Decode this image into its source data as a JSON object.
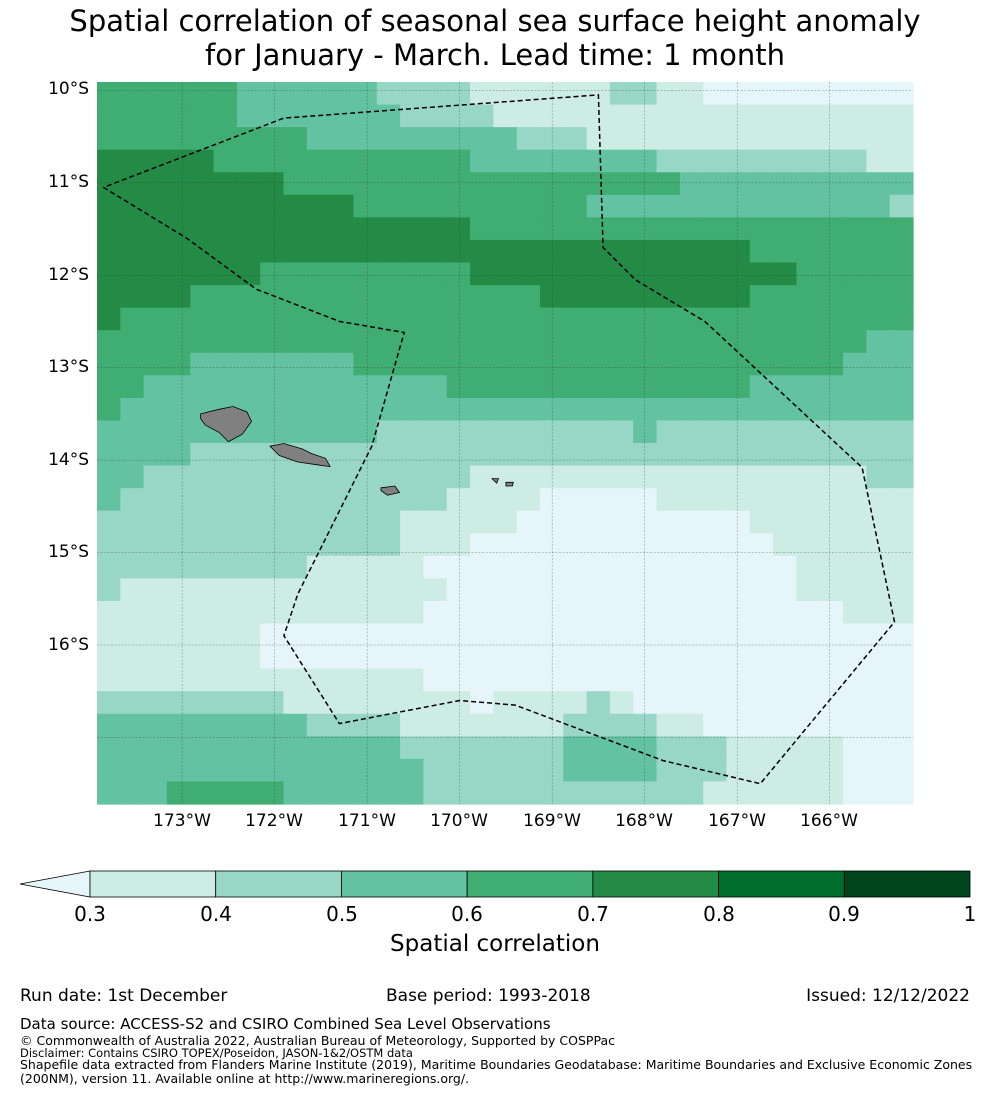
{
  "title_line1": "Spatial correlation of seasonal sea surface height anomaly",
  "title_line2": "for January - March. Lead time: 1 month",
  "lat_labels": [
    "10°S",
    "11°S",
    "12°S",
    "13°S",
    "14°S",
    "15°S",
    "16°S"
  ],
  "lon_labels": [
    "173°W",
    "172°W",
    "171°W",
    "170°W",
    "169°W",
    "168°W",
    "167°W",
    "166°W"
  ],
  "colorbar": {
    "label": "Spatial correlation",
    "ticks": [
      "0.3",
      "0.4",
      "0.5",
      "0.6",
      "0.7",
      "0.8",
      "0.9",
      "1"
    ],
    "colors": [
      "#cdece4",
      "#98d7c6",
      "#62c2a2",
      "#40ad72",
      "#238b45",
      "#006d2c",
      "#00441b"
    ],
    "under_color": "#e5f5f9"
  },
  "footer": {
    "run_date": "Run date: 1st December",
    "base_period": "Base period: 1993-2018",
    "issued": "Issued: 12/12/2022",
    "data_source": "Data source: ACCESS-S2 and CSIRO Combined Sea Level Observations",
    "copyright": "© Commonwealth of Australia 2022, Australian Bureau of Meteorology, Supported by COSPPac",
    "disclaimer": "Disclaimer: Contains CSIRO TOPEX/Poseidon, JASON-1&2/OSTM data",
    "shapefile1": "Shapefile data extracted from Flanders Marine Institute (2019), Maritime Boundaries Geodatabase: Maritime Boundaries and Exclusive Economic Zones",
    "shapefile2": "(200NM), version 11. Available online at http://www.marineregions.org/."
  },
  "map_data": {
    "legend_levels": [
      0.2,
      0.35,
      0.45,
      0.55,
      0.65,
      0.75
    ],
    "grid_rows": [
      [
        4,
        4,
        4,
        4,
        4,
        4,
        3,
        3,
        3,
        3,
        3,
        3,
        2,
        2,
        2,
        2,
        1,
        1,
        1,
        1,
        1,
        1,
        2,
        2,
        1,
        1,
        0,
        0,
        0,
        0,
        0,
        0,
        0,
        0,
        0
      ],
      [
        4,
        4,
        4,
        4,
        4,
        4,
        3,
        3,
        3,
        3,
        3,
        3,
        3,
        2,
        2,
        2,
        2,
        1,
        1,
        1,
        1,
        1,
        1,
        1,
        1,
        1,
        1,
        1,
        1,
        1,
        1,
        1,
        1,
        1,
        1
      ],
      [
        4,
        4,
        4,
        4,
        4,
        4,
        4,
        4,
        4,
        3,
        3,
        3,
        3,
        3,
        3,
        3,
        3,
        3,
        2,
        2,
        2,
        1,
        1,
        1,
        1,
        1,
        1,
        1,
        1,
        1,
        1,
        1,
        1,
        1,
        1
      ],
      [
        5,
        5,
        5,
        5,
        5,
        4,
        4,
        4,
        4,
        4,
        4,
        4,
        4,
        4,
        4,
        4,
        3,
        3,
        3,
        3,
        3,
        3,
        3,
        3,
        2,
        2,
        2,
        2,
        2,
        2,
        2,
        2,
        2,
        1,
        1
      ],
      [
        5,
        5,
        5,
        5,
        5,
        5,
        5,
        5,
        4,
        4,
        4,
        4,
        4,
        4,
        4,
        4,
        4,
        4,
        4,
        4,
        4,
        4,
        4,
        4,
        4,
        3,
        3,
        3,
        3,
        3,
        3,
        3,
        3,
        3,
        3
      ],
      [
        5,
        5,
        5,
        5,
        5,
        5,
        5,
        5,
        5,
        5,
        5,
        4,
        4,
        4,
        4,
        4,
        4,
        4,
        4,
        4,
        4,
        3,
        3,
        3,
        3,
        3,
        3,
        3,
        3,
        3,
        3,
        3,
        3,
        3,
        2
      ],
      [
        5,
        5,
        5,
        5,
        5,
        5,
        5,
        5,
        5,
        5,
        5,
        5,
        5,
        5,
        5,
        5,
        4,
        4,
        4,
        4,
        4,
        4,
        4,
        4,
        4,
        4,
        4,
        4,
        4,
        4,
        4,
        4,
        4,
        4,
        4
      ],
      [
        5,
        5,
        5,
        5,
        5,
        5,
        5,
        5,
        5,
        5,
        5,
        5,
        5,
        5,
        5,
        5,
        5,
        5,
        5,
        5,
        5,
        5,
        5,
        5,
        5,
        5,
        5,
        5,
        4,
        4,
        4,
        4,
        4,
        4,
        4
      ],
      [
        5,
        5,
        5,
        5,
        5,
        5,
        5,
        4,
        4,
        4,
        4,
        4,
        4,
        4,
        4,
        4,
        5,
        5,
        5,
        5,
        5,
        5,
        5,
        5,
        5,
        5,
        5,
        5,
        5,
        5,
        4,
        4,
        4,
        4,
        4
      ],
      [
        5,
        5,
        5,
        5,
        4,
        4,
        4,
        4,
        4,
        4,
        4,
        4,
        4,
        4,
        4,
        4,
        4,
        4,
        4,
        5,
        5,
        5,
        5,
        5,
        5,
        5,
        5,
        5,
        4,
        4,
        4,
        4,
        4,
        4,
        4
      ],
      [
        5,
        4,
        4,
        4,
        4,
        4,
        4,
        4,
        4,
        4,
        4,
        4,
        4,
        4,
        4,
        4,
        4,
        4,
        4,
        4,
        4,
        4,
        4,
        4,
        4,
        4,
        4,
        4,
        4,
        4,
        4,
        4,
        4,
        4,
        4
      ],
      [
        4,
        4,
        4,
        4,
        4,
        4,
        4,
        4,
        4,
        4,
        4,
        4,
        4,
        4,
        4,
        4,
        4,
        4,
        4,
        4,
        4,
        4,
        4,
        4,
        4,
        4,
        4,
        4,
        4,
        4,
        4,
        4,
        4,
        3,
        3
      ],
      [
        4,
        4,
        4,
        4,
        3,
        3,
        3,
        3,
        3,
        3,
        3,
        4,
        4,
        4,
        4,
        4,
        4,
        4,
        4,
        4,
        4,
        4,
        4,
        4,
        4,
        4,
        4,
        4,
        4,
        4,
        4,
        4,
        3,
        3,
        3
      ],
      [
        4,
        4,
        3,
        3,
        3,
        3,
        3,
        3,
        3,
        3,
        3,
        3,
        3,
        3,
        3,
        4,
        4,
        4,
        4,
        4,
        4,
        4,
        4,
        4,
        4,
        4,
        4,
        4,
        3,
        3,
        3,
        3,
        3,
        3,
        3
      ],
      [
        4,
        3,
        3,
        3,
        3,
        3,
        3,
        3,
        3,
        3,
        3,
        3,
        3,
        3,
        3,
        3,
        3,
        3,
        3,
        3,
        3,
        3,
        3,
        3,
        3,
        3,
        3,
        3,
        3,
        3,
        3,
        3,
        3,
        3,
        3
      ],
      [
        3,
        3,
        3,
        3,
        3,
        3,
        3,
        3,
        3,
        3,
        3,
        3,
        2,
        2,
        2,
        2,
        2,
        2,
        2,
        2,
        2,
        2,
        2,
        3,
        2,
        2,
        2,
        2,
        2,
        2,
        2,
        2,
        2,
        2,
        2
      ],
      [
        3,
        3,
        3,
        3,
        2,
        2,
        2,
        2,
        2,
        2,
        2,
        2,
        2,
        2,
        2,
        2,
        2,
        2,
        2,
        2,
        2,
        2,
        2,
        2,
        2,
        2,
        2,
        2,
        2,
        2,
        2,
        2,
        2,
        2,
        2
      ],
      [
        3,
        3,
        2,
        2,
        2,
        2,
        2,
        2,
        2,
        2,
        2,
        2,
        2,
        2,
        2,
        2,
        1,
        1,
        1,
        1,
        1,
        1,
        1,
        1,
        1,
        1,
        1,
        1,
        1,
        1,
        1,
        1,
        1,
        2,
        2
      ],
      [
        3,
        2,
        2,
        2,
        2,
        2,
        2,
        2,
        2,
        2,
        2,
        2,
        2,
        2,
        2,
        1,
        1,
        1,
        1,
        0,
        0,
        0,
        0,
        0,
        1,
        1,
        1,
        1,
        1,
        1,
        1,
        1,
        1,
        1,
        1
      ],
      [
        2,
        2,
        2,
        2,
        2,
        2,
        2,
        2,
        2,
        2,
        2,
        2,
        2,
        1,
        1,
        1,
        1,
        1,
        0,
        0,
        0,
        0,
        0,
        0,
        0,
        0,
        0,
        0,
        1,
        1,
        1,
        1,
        1,
        1,
        1
      ],
      [
        2,
        2,
        2,
        2,
        2,
        2,
        2,
        2,
        2,
        2,
        2,
        2,
        2,
        1,
        1,
        1,
        0,
        0,
        0,
        0,
        0,
        0,
        0,
        0,
        0,
        0,
        0,
        0,
        0,
        1,
        1,
        1,
        1,
        1,
        1
      ],
      [
        2,
        2,
        2,
        2,
        2,
        2,
        2,
        2,
        2,
        1,
        1,
        1,
        1,
        1,
        0,
        0,
        0,
        0,
        0,
        0,
        0,
        0,
        0,
        0,
        0,
        0,
        0,
        0,
        0,
        0,
        1,
        1,
        1,
        1,
        1
      ],
      [
        2,
        1,
        1,
        1,
        1,
        1,
        1,
        1,
        1,
        1,
        1,
        1,
        1,
        1,
        1,
        0,
        0,
        0,
        0,
        0,
        0,
        0,
        0,
        0,
        0,
        0,
        0,
        0,
        0,
        0,
        1,
        1,
        1,
        1,
        1
      ],
      [
        1,
        1,
        1,
        1,
        1,
        1,
        1,
        1,
        1,
        1,
        1,
        1,
        1,
        1,
        0,
        0,
        0,
        0,
        0,
        0,
        0,
        0,
        0,
        0,
        0,
        0,
        0,
        0,
        0,
        0,
        0,
        0,
        1,
        1,
        1
      ],
      [
        1,
        1,
        1,
        1,
        1,
        1,
        1,
        0,
        0,
        0,
        0,
        0,
        0,
        0,
        0,
        0,
        0,
        0,
        0,
        0,
        0,
        0,
        0,
        0,
        0,
        0,
        0,
        0,
        0,
        0,
        0,
        0,
        0,
        0,
        0
      ],
      [
        1,
        1,
        1,
        1,
        1,
        1,
        1,
        0,
        0,
        0,
        0,
        0,
        0,
        0,
        0,
        0,
        0,
        0,
        0,
        0,
        0,
        0,
        0,
        0,
        0,
        0,
        0,
        0,
        0,
        0,
        0,
        0,
        0,
        0,
        0
      ],
      [
        1,
        1,
        1,
        1,
        1,
        1,
        1,
        1,
        1,
        1,
        1,
        1,
        1,
        1,
        0,
        0,
        0,
        0,
        0,
        0,
        0,
        0,
        0,
        0,
        0,
        0,
        0,
        0,
        0,
        0,
        0,
        0,
        0,
        0,
        0
      ],
      [
        2,
        2,
        2,
        2,
        2,
        2,
        2,
        2,
        1,
        1,
        1,
        1,
        1,
        1,
        1,
        1,
        0,
        1,
        1,
        1,
        1,
        2,
        1,
        0,
        0,
        0,
        0,
        0,
        0,
        0,
        0,
        0,
        0,
        0,
        0
      ],
      [
        3,
        3,
        3,
        3,
        3,
        3,
        3,
        3,
        3,
        2,
        2,
        2,
        2,
        1,
        1,
        1,
        1,
        1,
        1,
        1,
        2,
        2,
        2,
        2,
        1,
        1,
        0,
        0,
        0,
        0,
        0,
        0,
        0,
        0,
        0
      ],
      [
        3,
        3,
        3,
        3,
        3,
        3,
        3,
        3,
        3,
        3,
        3,
        3,
        3,
        2,
        2,
        2,
        2,
        2,
        2,
        2,
        3,
        3,
        3,
        3,
        2,
        2,
        2,
        1,
        1,
        1,
        1,
        1,
        0,
        0,
        0
      ],
      [
        3,
        3,
        3,
        3,
        3,
        3,
        3,
        3,
        3,
        3,
        3,
        3,
        3,
        3,
        2,
        2,
        2,
        2,
        2,
        2,
        3,
        3,
        3,
        3,
        2,
        2,
        2,
        1,
        1,
        1,
        1,
        1,
        0,
        0,
        0
      ],
      [
        3,
        3,
        3,
        4,
        4,
        4,
        4,
        4,
        3,
        3,
        3,
        3,
        3,
        3,
        2,
        2,
        2,
        2,
        2,
        2,
        2,
        2,
        2,
        2,
        2,
        2,
        1,
        1,
        1,
        1,
        1,
        1,
        0,
        0,
        0
      ]
    ],
    "eez_boundary": [
      [
        -173.85,
        -11.05
      ],
      [
        -172.95,
        -11.6
      ],
      [
        -172.2,
        -12.15
      ],
      [
        -171.3,
        -12.5
      ],
      [
        -170.6,
        -12.62
      ],
      [
        -170.95,
        -13.85
      ],
      [
        -171.75,
        -15.45
      ],
      [
        -171.9,
        -15.9
      ],
      [
        -171.3,
        -16.85
      ],
      [
        -170.0,
        -16.6
      ],
      [
        -169.4,
        -16.65
      ],
      [
        -167.8,
        -17.25
      ],
      [
        -166.75,
        -17.5
      ],
      [
        -165.3,
        -15.75
      ],
      [
        -165.65,
        -14.08
      ],
      [
        -167.35,
        -12.5
      ],
      [
        -168.1,
        -12.05
      ],
      [
        -168.45,
        -11.7
      ],
      [
        -168.5,
        -10.05
      ],
      [
        -171.9,
        -10.3
      ],
      [
        -173.85,
        -11.05
      ]
    ],
    "islands": [
      [
        [
          -172.8,
          -13.5
        ],
        [
          -172.6,
          -13.45
        ],
        [
          -172.45,
          -13.42
        ],
        [
          -172.3,
          -13.48
        ],
        [
          -172.25,
          -13.58
        ],
        [
          -172.35,
          -13.72
        ],
        [
          -172.5,
          -13.8
        ],
        [
          -172.6,
          -13.7
        ],
        [
          -172.75,
          -13.62
        ],
        [
          -172.8,
          -13.55
        ]
      ],
      [
        [
          -172.05,
          -13.85
        ],
        [
          -171.9,
          -13.82
        ],
        [
          -171.7,
          -13.88
        ],
        [
          -171.6,
          -13.93
        ],
        [
          -171.45,
          -13.98
        ],
        [
          -171.4,
          -14.07
        ],
        [
          -171.55,
          -14.05
        ],
        [
          -171.75,
          -14.02
        ],
        [
          -171.95,
          -13.95
        ],
        [
          -172.0,
          -13.9
        ]
      ],
      [
        [
          -170.85,
          -14.3
        ],
        [
          -170.7,
          -14.28
        ],
        [
          -170.65,
          -14.35
        ],
        [
          -170.78,
          -14.38
        ],
        [
          -170.85,
          -14.33
        ]
      ],
      [
        [
          -169.65,
          -14.2
        ],
        [
          -169.58,
          -14.2
        ],
        [
          -169.6,
          -14.25
        ]
      ],
      [
        [
          -169.5,
          -14.24
        ],
        [
          -169.42,
          -14.24
        ],
        [
          -169.43,
          -14.28
        ],
        [
          -169.5,
          -14.28
        ]
      ]
    ]
  }
}
